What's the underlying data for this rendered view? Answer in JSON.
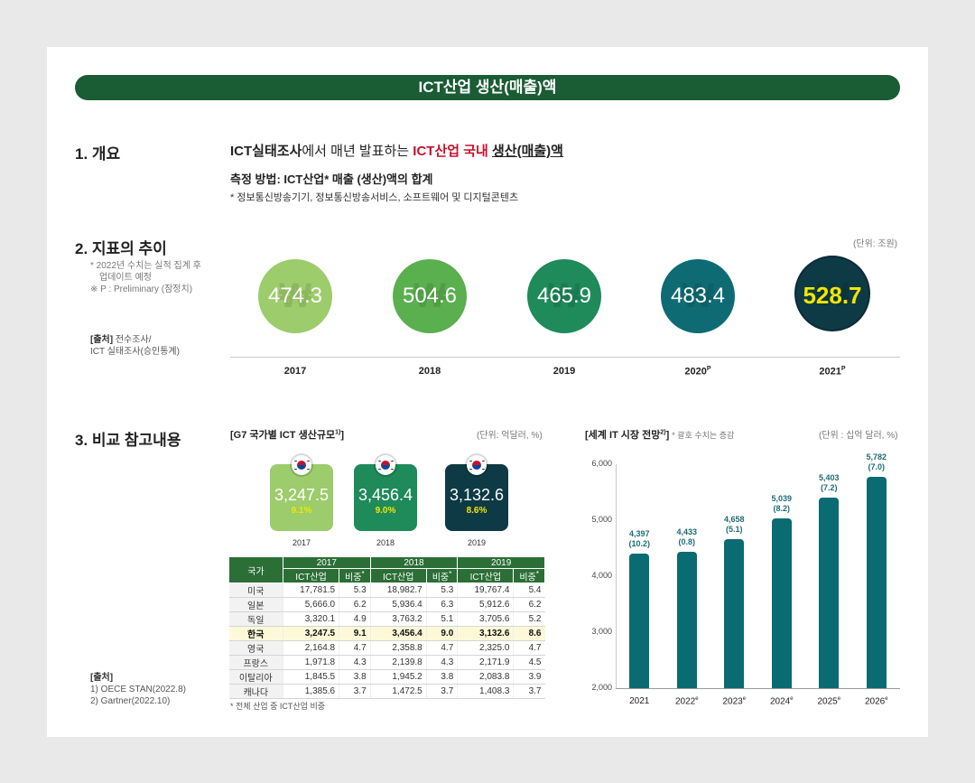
{
  "title": "ICT산업 생산(매출)액",
  "section1": {
    "heading": "1. 개요",
    "desc_part1": "ICT실태조사",
    "desc_part2": "에서 매년 발표하는 ",
    "desc_part3": "ICT산업 국내",
    "desc_part4": " ",
    "desc_part5": "생산(매출)액",
    "method": "측정 방법: ICT산업* 매출 (생산)액의 합계",
    "method_note": "* 정보통신방송기기, 정보통신방송서비스, 소프트웨어 및 디지털콘텐츠"
  },
  "section2": {
    "heading": "2. 지표의 추이",
    "note1": "* 2022년 수치는 실적 집계 후",
    "note2": "업데이트 예정",
    "note3": "※ P : Preliminary (잠정치)",
    "source_label": "[출처]",
    "source1": " 전수조사/",
    "source2": "ICT 실태조사(승인통계)",
    "unit": "(단위: 조원)"
  },
  "section3": {
    "heading": "3. 비교 참고내용",
    "source_label": "[출처]",
    "source1": "1) OECE STAN(2022.8)",
    "source2": "2) Gartner(2022.10)"
  },
  "g7": {
    "title": "[G7 국가별 ICT 생산규모",
    "title_sup": "1)",
    "title_end": "]",
    "unit": "(단위: 억달러, %)",
    "table_col_country": "국가",
    "sub_ict": "ICT산업",
    "sub_share": "비중",
    "sub_share_mark": "*",
    "footnote": "* 전체 산업 중 ICT산업 비중"
  },
  "it_market": {
    "title": "[세계 IT 시장 전망",
    "title_sup": "2)",
    "title_end": "]",
    "note": "* 괄호 수치는 증감",
    "unit": "(단위 : 십억 달러, %)"
  },
  "colors": {
    "brand_green": "#1a5c34",
    "red": "#c8102e",
    "teal_bar": "#0a6b72",
    "highlight_yellow": "#f2e600"
  },
  "chart_data": [
    {
      "type": "bar",
      "id": "ict_production_trend",
      "categories": [
        "2017",
        "2018",
        "2019",
        "2020",
        "2021"
      ],
      "category_marks": [
        "",
        "",
        "",
        "P",
        "P"
      ],
      "values": [
        474.3,
        504.6,
        465.9,
        483.4,
        528.7
      ],
      "labels": [
        "474.3",
        "504.6",
        "465.9",
        "483.4",
        "528.7"
      ],
      "colors": [
        "#9ccc6b",
        "#5aaf4e",
        "#1f8a5a",
        "#0e6b73",
        "#0d3a44"
      ]
    },
    {
      "type": "bar",
      "id": "korea_ict_production",
      "categories": [
        "2017",
        "2018",
        "2019"
      ],
      "values": [
        3247.5,
        3456.4,
        3132.6
      ],
      "labels": [
        "3,247.5",
        "3,456.4",
        "3,132.6"
      ],
      "shares": [
        "9.1%",
        "9.0%",
        "8.6%"
      ],
      "colors": [
        "#9ccc6b",
        "#1f8a5a",
        "#0d3a44"
      ]
    },
    {
      "type": "table",
      "id": "g7_table",
      "years": [
        "2017",
        "2018",
        "2019"
      ],
      "rows": [
        {
          "country": "미국",
          "v2017": "17,781.5",
          "s2017": "5.3",
          "v2018": "18,982.7",
          "s2018": "5.3",
          "v2019": "19,767.4",
          "s2019": "5.4"
        },
        {
          "country": "일본",
          "v2017": "5,666.0",
          "s2017": "6.2",
          "v2018": "5,936.4",
          "s2018": "6.3",
          "v2019": "5,912.6",
          "s2019": "6.2"
        },
        {
          "country": "독일",
          "v2017": "3,320.1",
          "s2017": "4.9",
          "v2018": "3,763.2",
          "s2018": "5.1",
          "v2019": "3,705.6",
          "s2019": "5.2"
        },
        {
          "country": "한국",
          "v2017": "3,247.5",
          "s2017": "9.1",
          "v2018": "3,456.4",
          "s2018": "9.0",
          "v2019": "3,132.6",
          "s2019": "8.6",
          "highlight": true
        },
        {
          "country": "영국",
          "v2017": "2,164.8",
          "s2017": "4.7",
          "v2018": "2,358.8",
          "s2018": "4.7",
          "v2019": "2,325.0",
          "s2019": "4.7"
        },
        {
          "country": "프랑스",
          "v2017": "1,971.8",
          "s2017": "4.3",
          "v2018": "2,139.8",
          "s2018": "4.3",
          "v2019": "2,171.9",
          "s2019": "4.5"
        },
        {
          "country": "이탈리아",
          "v2017": "1,845.5",
          "s2017": "3.8",
          "v2018": "1,945.2",
          "s2018": "3.8",
          "v2019": "2,083.8",
          "s2019": "3.9"
        },
        {
          "country": "캐나다",
          "v2017": "1,385.6",
          "s2017": "3.7",
          "v2018": "1,472.5",
          "s2018": "3.7",
          "v2019": "1,408.3",
          "s2019": "3.7"
        }
      ]
    },
    {
      "type": "bar",
      "id": "world_it_market",
      "categories": [
        "2021",
        "2022",
        "2023",
        "2024",
        "2025",
        "2026"
      ],
      "category_marks": [
        "",
        "e",
        "e",
        "e",
        "e",
        "e"
      ],
      "values": [
        4397,
        4433,
        4658,
        5039,
        5403,
        5782
      ],
      "labels": [
        "4,397",
        "4,433",
        "4,658",
        "5,039",
        "5,403",
        "5,782"
      ],
      "changes": [
        "(10.2)",
        "(0.8)",
        "(5.1)",
        "(8.2)",
        "(7.2)",
        "(7.0)"
      ],
      "yticks": [
        "2,000",
        "3,000",
        "4,000",
        "5,000",
        "6,000"
      ],
      "ylim": [
        2000,
        6000
      ]
    }
  ]
}
